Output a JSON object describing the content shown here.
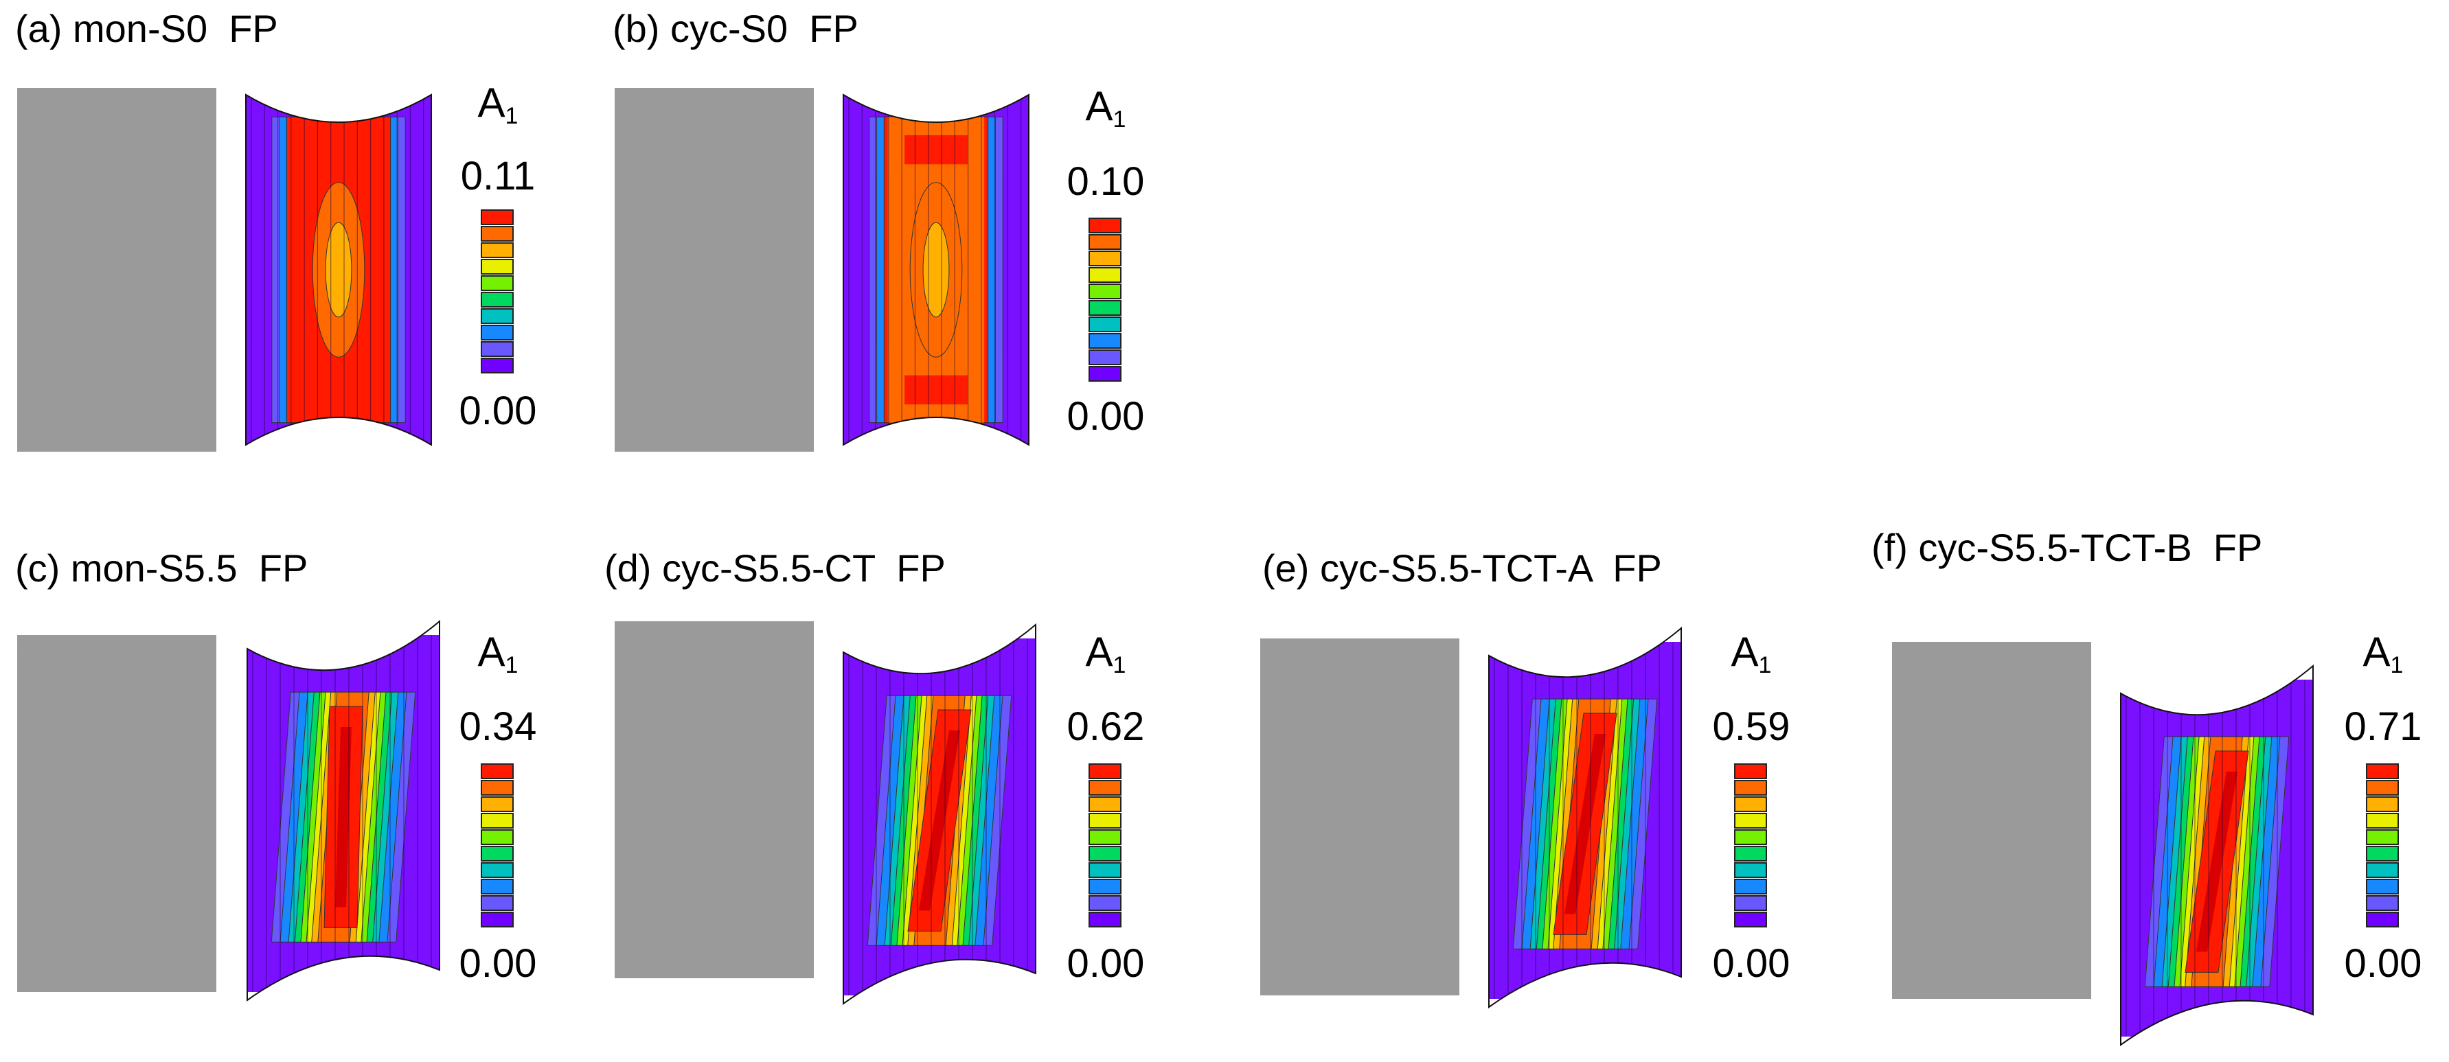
{
  "panels": [
    {
      "id": "a",
      "title": "(a) mon-S0  FP",
      "symbol": "A",
      "symbol_sub": "1",
      "max": "0.11",
      "min": "0.00",
      "shape": "symmetric",
      "peak": "ellipse-bright"
    },
    {
      "id": "b",
      "title": "(b) cyc-S0  FP",
      "symbol": "A",
      "symbol_sub": "1",
      "max": "0.10",
      "min": "0.00",
      "shape": "symmetric",
      "peak": "ellipse-broad"
    },
    {
      "id": "c",
      "title": "(c) mon-S5.5  FP",
      "symbol": "A",
      "symbol_sub": "1",
      "max": "0.34",
      "min": "0.00",
      "shape": "sheared",
      "peak": "band"
    },
    {
      "id": "d",
      "title": "(d) cyc-S5.5-CT  FP",
      "symbol": "A",
      "symbol_sub": "1",
      "max": "0.62",
      "min": "0.00",
      "shape": "sheared",
      "peak": "band-tilted"
    },
    {
      "id": "e",
      "title": "(e) cyc-S5.5-TCT-A  FP",
      "symbol": "A",
      "symbol_sub": "1",
      "max": "0.59",
      "min": "0.00",
      "shape": "sheared",
      "peak": "band-tilted"
    },
    {
      "id": "f",
      "title": "(f) cyc-S5.5-TCT-B  FP",
      "symbol": "A",
      "symbol_sub": "1",
      "max": "0.71",
      "min": "0.00",
      "shape": "sheared",
      "peak": "band-tilted"
    }
  ],
  "colorbar": [
    "#ff1a00",
    "#ff6a00",
    "#ffb000",
    "#e8f000",
    "#74f000",
    "#00d860",
    "#00c0c0",
    "#1888ff",
    "#6a58ff",
    "#7000ff"
  ],
  "colors": {
    "base": "#7a10ff",
    "dic_gray": "#9a9a9a"
  }
}
